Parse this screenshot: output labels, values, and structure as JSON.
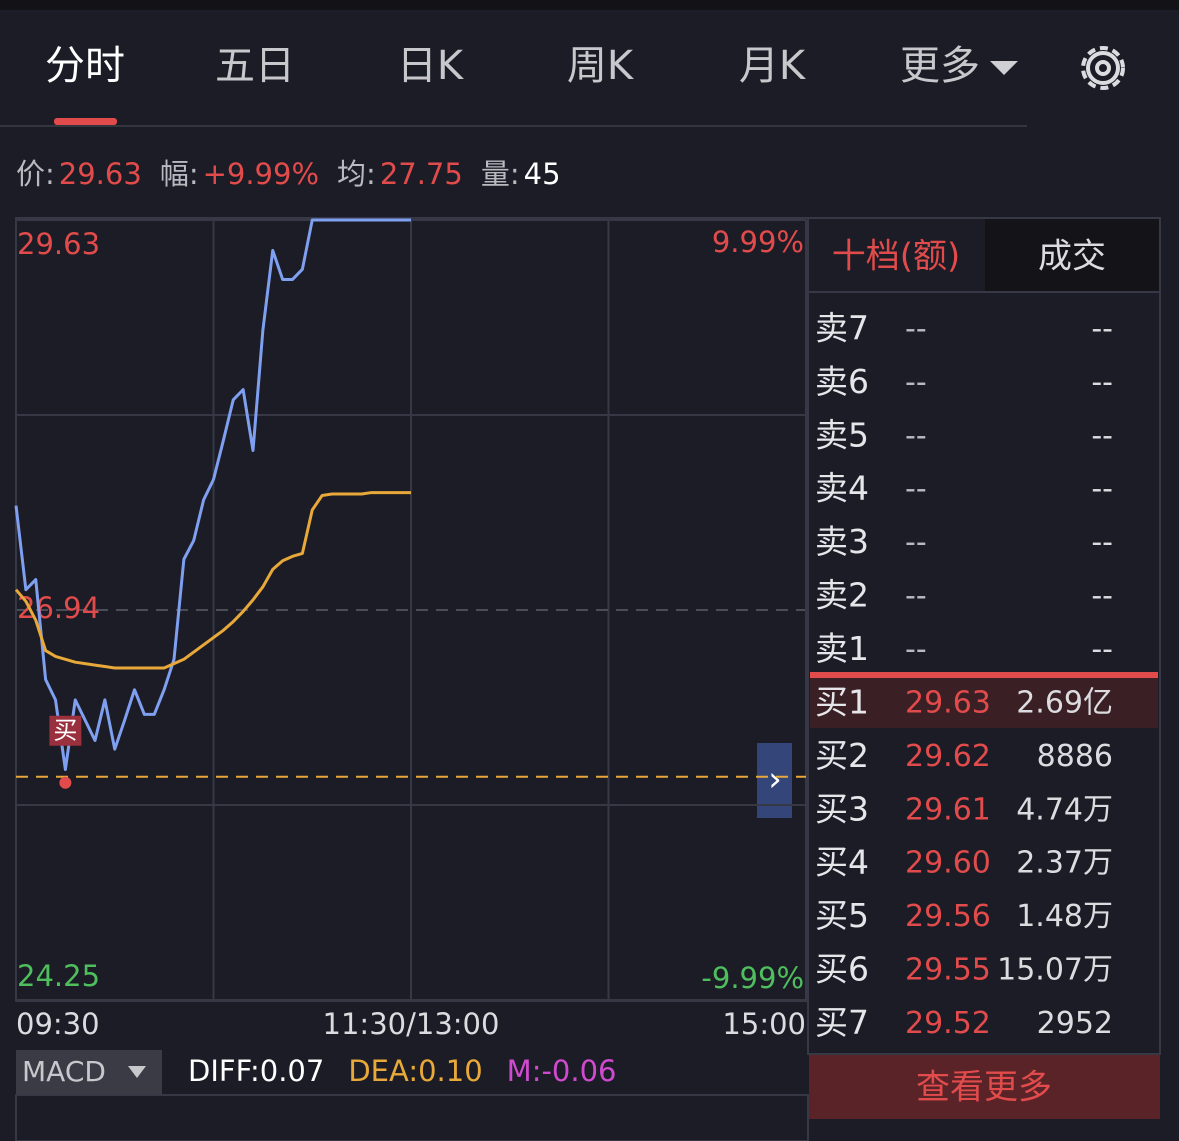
{
  "tabs": [
    "分时",
    "五日",
    "日K",
    "周K",
    "月K",
    "更多"
  ],
  "quote": {
    "price_label": "价:",
    "price": "29.63",
    "change_label": "幅:",
    "change": "+9.99%",
    "avg_label": "均:",
    "avg": "27.75",
    "volume_label": "量:",
    "volume": "45"
  },
  "chart_data": {
    "type": "line",
    "x": [
      "09:30",
      "09:33",
      "09:36",
      "09:39",
      "09:42",
      "09:45",
      "09:48",
      "09:51",
      "09:54",
      "09:57",
      "10:00",
      "10:03",
      "10:06",
      "10:09",
      "10:12",
      "10:15",
      "10:18",
      "10:21",
      "10:24",
      "10:27",
      "10:30",
      "10:33",
      "10:36",
      "10:39",
      "10:42",
      "10:45",
      "10:48",
      "10:51",
      "10:54",
      "10:57",
      "11:00",
      "11:03",
      "11:06",
      "11:09",
      "11:12",
      "11:15",
      "11:18",
      "11:21",
      "11:24",
      "11:27",
      "11:30"
    ],
    "series": [
      {
        "color": "#7f9ff0",
        "values": [
          27.66,
          27.08,
          27.15,
          26.46,
          26.32,
          25.84,
          26.32,
          26.18,
          26.04,
          26.32,
          25.98,
          26.18,
          26.39,
          26.22,
          26.22,
          26.39,
          26.6,
          27.29,
          27.42,
          27.7,
          27.84,
          28.11,
          28.39,
          28.46,
          28.04,
          28.87,
          29.42,
          29.22,
          29.22,
          29.29,
          29.63,
          29.63,
          29.63,
          29.63,
          29.63,
          29.63,
          29.63,
          29.63,
          29.63,
          29.63,
          29.63
        ]
      },
      {
        "color": "#e8a93a",
        "values": [
          27.08,
          27.0,
          26.87,
          26.66,
          26.62,
          26.6,
          26.58,
          26.57,
          26.56,
          26.55,
          26.54,
          26.54,
          26.54,
          26.54,
          26.54,
          26.54,
          26.57,
          26.6,
          26.65,
          26.7,
          26.75,
          26.8,
          26.86,
          26.93,
          27.01,
          27.1,
          27.22,
          27.28,
          27.31,
          27.33,
          27.63,
          27.73,
          27.74,
          27.74,
          27.74,
          27.74,
          27.75,
          27.75,
          27.75,
          27.75,
          27.75
        ]
      }
    ],
    "ylim": [
      24.25,
      29.63
    ],
    "yticks": [
      24.25,
      26.94,
      29.63
    ],
    "y2lim": [
      -9.99,
      9.99
    ],
    "y2ticks": [
      {
        "value": -9.99,
        "label": "-9.99%"
      },
      {
        "value": 9.99,
        "label": "9.99%"
      }
    ],
    "xticks": [
      "09:30",
      "11:30/13:00",
      "15:00"
    ],
    "grid": true,
    "marker": {
      "label": "买",
      "x": "09:45",
      "value": 25.79,
      "color": "#e24b4b"
    }
  },
  "macd": {
    "selector": "MACD",
    "diff": "DIFF:0.07",
    "dea": "DEA:0.10",
    "m": "M:-0.06"
  },
  "order_book": {
    "tabs": [
      "十档(额)",
      "成交"
    ],
    "asks": [
      {
        "label": "卖7",
        "price": "--",
        "amount": "--"
      },
      {
        "label": "卖6",
        "price": "--",
        "amount": "--"
      },
      {
        "label": "卖5",
        "price": "--",
        "amount": "--"
      },
      {
        "label": "卖4",
        "price": "--",
        "amount": "--"
      },
      {
        "label": "卖3",
        "price": "--",
        "amount": "--"
      },
      {
        "label": "卖2",
        "price": "--",
        "amount": "--"
      },
      {
        "label": "卖1",
        "price": "--",
        "amount": "--"
      }
    ],
    "bids": [
      {
        "label": "买1",
        "price": "29.63",
        "amount": "2.69亿"
      },
      {
        "label": "买2",
        "price": "29.62",
        "amount": "8886"
      },
      {
        "label": "买3",
        "price": "29.61",
        "amount": "4.74万"
      },
      {
        "label": "买4",
        "price": "29.60",
        "amount": "2.37万"
      },
      {
        "label": "买5",
        "price": "29.56",
        "amount": "1.48万"
      },
      {
        "label": "买6",
        "price": "29.55",
        "amount": "15.07万"
      },
      {
        "label": "买7",
        "price": "29.52",
        "amount": "2952"
      }
    ],
    "more": "查看更多"
  }
}
